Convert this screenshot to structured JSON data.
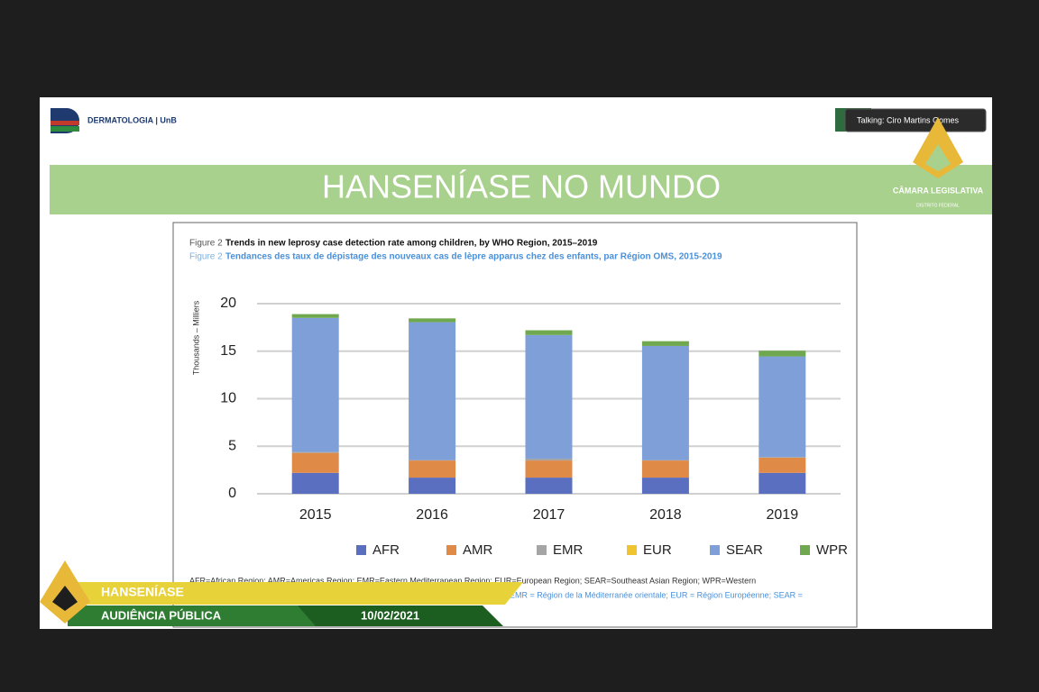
{
  "meeting": {
    "talking": "Talking: Ciro Martins Gomes"
  },
  "slide": {
    "logo_text": "DERMATOLOGIA | UnB",
    "title": "HANSENÍASE NO MUNDO",
    "footnote_en": "AFR=African Region; AMR=Americas Region; EMR=Eastern Mediterranean Region; EUR=European Region; SEAR=Southeast Asian Region; WPR=Western",
    "footnote_fr": "EMR = Région de la Méditerranée orientale; EUR = Région Européenne; SEAR ="
  },
  "broadcaster": {
    "name": "CÂMARA LEGISLATIVA",
    "subname": "DISTRITO FEDERAL"
  },
  "lower_third": {
    "topic": "HANSENÍASE",
    "event": "AUDIÊNCIA PÚBLICA",
    "date": "10/02/2021"
  },
  "chart_data": {
    "type": "stacked_bar",
    "figure_label": "Figure 2",
    "title": "Trends in new leprosy case detection rate among children, by WHO Region, 2015–2019",
    "subtitle": "Tendances des taux de dépistage des nouveaux cas de lèpre apparus chez des enfants, par Région OMS, 2015-2019",
    "y_label": "Thousands – Milliers",
    "categories": [
      "2015",
      "2016",
      "2017",
      "2018",
      "2019"
    ],
    "series": [
      {
        "name": "AFR",
        "color": "#5a6fc0",
        "values": [
          2.2,
          1.7,
          1.7,
          1.7,
          2.2
        ]
      },
      {
        "name": "AMR",
        "color": "#e08a48",
        "values": [
          2.1,
          1.8,
          1.8,
          1.8,
          1.6
        ]
      },
      {
        "name": "EMR",
        "color": "#a5a5a5",
        "values": [
          0.1,
          0.05,
          0.2,
          0.05,
          0.05
        ]
      },
      {
        "name": "EUR",
        "color": "#f0c330",
        "values": [
          0,
          0,
          0,
          0,
          0
        ]
      },
      {
        "name": "SEAR",
        "color": "#7f9fd9",
        "values": [
          14.1,
          14.5,
          13.0,
          12.0,
          10.6
        ]
      },
      {
        "name": "WPR",
        "color": "#70a850",
        "values": [
          0.4,
          0.4,
          0.5,
          0.5,
          0.6
        ]
      }
    ],
    "ylim": [
      0,
      20
    ],
    "yticks": [
      0,
      5,
      10,
      15,
      20
    ],
    "grid": true
  }
}
